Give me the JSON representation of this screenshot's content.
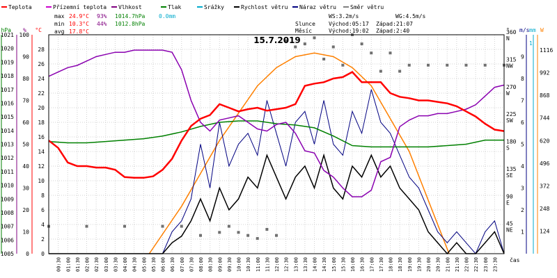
{
  "chart_data": {
    "type": "line",
    "title": "15.7.2019",
    "xlabel": "čas",
    "x_ticks": [
      "00:30",
      "01:00",
      "01:30",
      "02:00",
      "02:30",
      "03:00",
      "03:30",
      "04:00",
      "04:30",
      "05:00",
      "05:30",
      "06:00",
      "06:30",
      "07:00",
      "07:30",
      "08:00",
      "08:30",
      "09:00",
      "09:30",
      "10:00",
      "10:30",
      "11:00",
      "11:30",
      "12:00",
      "12:30",
      "13:00",
      "13:30",
      "14:00",
      "14:30",
      "15:00",
      "15:30",
      "16:00",
      "16:30",
      "17:00",
      "17:30",
      "18:00",
      "18:30",
      "19:00",
      "19:30",
      "20:00",
      "20:30",
      "21:00",
      "21:30",
      "22:00",
      "22:30",
      "23:00",
      "23:30"
    ],
    "axes": {
      "hpa": {
        "label": "hPa",
        "color": "#008000",
        "ticks": [
          "1005",
          "1006",
          "1007",
          "1008",
          "1009",
          "1010",
          "1011",
          "1012",
          "1013",
          "1014",
          "1015",
          "1016",
          "1017",
          "1018",
          "1019",
          "1020",
          "1021"
        ],
        "range": [
          1005,
          1021
        ]
      },
      "pct": {
        "label": "%",
        "color": "#800080",
        "ticks": [
          "0",
          "10",
          "20",
          "30",
          "40",
          "50",
          "60",
          "70",
          "80",
          "90",
          "100"
        ],
        "range": [
          0,
          100
        ]
      },
      "temp": {
        "label": "°C",
        "color": "#ff0000",
        "ticks": [
          "0",
          "2",
          "4",
          "6",
          "8",
          "10",
          "12",
          "14",
          "16",
          "18",
          "20",
          "22",
          "24",
          "26",
          "28"
        ],
        "range": [
          0,
          30
        ]
      },
      "dir": {
        "label": "°",
        "ticks": [
          "45 NE",
          "90 E",
          "135 SE",
          "180 S",
          "225 SW",
          "270 W",
          "315 NW",
          "360 N"
        ],
        "range": [
          0,
          360
        ]
      },
      "wind": {
        "label": "m/s",
        "color": "#000080",
        "ticks": [
          "1",
          "2",
          "3",
          "4",
          "5",
          "6",
          "7",
          "8",
          "9"
        ],
        "range": [
          0,
          10
        ]
      },
      "rain": {
        "label": "mm",
        "color": "#00aacc",
        "ticks": [
          "1"
        ],
        "range": [
          0,
          1
        ]
      },
      "solar": {
        "label": "W",
        "color": "#ff8000",
        "ticks": [
          "124",
          "248",
          "372",
          "496",
          "620",
          "744",
          "868",
          "992",
          "1116"
        ],
        "range": [
          0,
          1200
        ]
      }
    },
    "legend": [
      {
        "name": "Teplota",
        "color": "#ff0000"
      },
      {
        "name": "Přízemní teplota",
        "color": "#cc00cc"
      },
      {
        "name": "Vlhkost",
        "color": "#800080"
      },
      {
        "name": "Tlak",
        "color": "#008000"
      },
      {
        "name": "Srážky",
        "color": "#00aacc"
      },
      {
        "name": "Rychlost větru",
        "color": "#000000"
      },
      {
        "name": "Náraz větru",
        "color": "#000080"
      },
      {
        "name": "Směr větru",
        "color": "#808080"
      }
    ],
    "stats": {
      "max": {
        "label": "max",
        "temp": "24.9°C",
        "hum": "93%",
        "press": "1014.7hPa",
        "rain": "0.0mm"
      },
      "min": {
        "label": "min",
        "temp": "10.3°C",
        "hum": "44%",
        "press": "1012.8hPa"
      },
      "avg": {
        "label": "avg",
        "temp": "17.8°C"
      },
      "ws": "WS:3.2m/s",
      "wg": "WG:4.5m/s",
      "sun": {
        "label": "Slunce",
        "rise": "Východ:05:17",
        "set": "Západ:21:07"
      },
      "moon": {
        "label": "Měsíc",
        "rise": "Východ:19:02",
        "set": "Západ:2:40"
      }
    },
    "series": {
      "temperature": {
        "hours": [
          0,
          0.5,
          1,
          1.5,
          2,
          2.5,
          3,
          3.5,
          4,
          4.5,
          5,
          5.5,
          6,
          6.5,
          7,
          7.5,
          8,
          8.5,
          9,
          9.5,
          10,
          10.5,
          11,
          11.5,
          12,
          12.5,
          13,
          13.5,
          14,
          14.5,
          15,
          15.5,
          16,
          16.5,
          17,
          17.5,
          18,
          18.5,
          19,
          19.5,
          20,
          20.5,
          21,
          21.5,
          22,
          22.5,
          23,
          23.5,
          24
        ],
        "values": [
          15.5,
          14.5,
          12.5,
          12,
          12,
          11.8,
          11.8,
          11.5,
          10.5,
          10.4,
          10.4,
          10.6,
          11.5,
          13,
          15.5,
          17.5,
          18.5,
          19,
          20.5,
          20,
          19.5,
          19.8,
          20,
          19.6,
          19.8,
          20,
          20.5,
          23,
          23.3,
          23.5,
          24,
          24.2,
          24.9,
          23.5,
          23.5,
          23.5,
          22,
          21.5,
          21.3,
          21,
          21,
          20.8,
          20.6,
          20.2,
          19.5,
          18.8,
          17.8,
          17,
          16.8
        ]
      },
      "humidity": {
        "hours": [
          0,
          0.5,
          1,
          1.5,
          2,
          2.5,
          3,
          3.5,
          4,
          4.5,
          5,
          5.5,
          6,
          6.5,
          7,
          7.5,
          8,
          8.5,
          9,
          9.5,
          10,
          10.5,
          11,
          11.5,
          12,
          12.5,
          13,
          13.5,
          14,
          14.5,
          15,
          15.5,
          16,
          16.5,
          17,
          17.5,
          18,
          18.5,
          19,
          19.5,
          20,
          20.5,
          21,
          21.5,
          22,
          22.5,
          23,
          23.5,
          24
        ],
        "values": [
          81,
          83,
          85,
          86,
          88,
          90,
          91,
          92,
          92,
          93,
          93,
          93,
          93,
          92,
          84,
          70,
          60,
          56,
          61,
          62,
          63,
          60,
          57,
          56,
          59,
          60,
          55,
          47,
          46,
          38,
          35,
          30,
          26,
          26,
          29,
          42,
          44,
          58,
          61,
          63,
          63,
          64,
          64,
          65,
          66,
          68,
          72,
          76,
          77
        ]
      },
      "pressure": {
        "hours": [
          0,
          1,
          2,
          3,
          4,
          5,
          6,
          7,
          8,
          9,
          10,
          11,
          12,
          13,
          14,
          15,
          16,
          17,
          18,
          19,
          20,
          21,
          22,
          23,
          24
        ],
        "values": [
          1013.2,
          1013.1,
          1013.1,
          1013.2,
          1013.3,
          1013.4,
          1013.6,
          1013.9,
          1014.3,
          1014.6,
          1014.7,
          1014.7,
          1014.5,
          1014.4,
          1014.2,
          1013.6,
          1012.9,
          1012.8,
          1012.8,
          1012.8,
          1012.8,
          1012.9,
          1013.0,
          1013.3,
          1013.3
        ]
      },
      "solar_radiation": {
        "hours": [
          5.3,
          7,
          9,
          11,
          12,
          13,
          14,
          15,
          16,
          17,
          19,
          21.1
        ],
        "values": [
          0,
          260,
          620,
          920,
          1020,
          1080,
          1100,
          1080,
          1020,
          920,
          560,
          0
        ]
      },
      "wind_speed": {
        "hours": [
          0,
          1,
          2,
          3,
          4,
          5,
          6,
          6.5,
          7,
          7.5,
          8,
          8.5,
          9,
          9.5,
          10,
          10.5,
          11,
          11.5,
          12,
          12.5,
          13,
          13.5,
          14,
          14.5,
          15,
          15.5,
          16,
          16.5,
          17,
          17.5,
          18,
          18.5,
          19,
          19.5,
          20,
          20.5,
          21,
          21.5,
          22,
          22.5,
          23,
          23.5,
          24
        ],
        "values": [
          0,
          0,
          0,
          0,
          0,
          0,
          0,
          0.5,
          0.8,
          1.5,
          2.5,
          1.5,
          3,
          2,
          2.5,
          3.5,
          3,
          4.5,
          3.5,
          2.5,
          3.5,
          4,
          3,
          4.5,
          3,
          2.5,
          4,
          3.5,
          4.5,
          3.5,
          4,
          3,
          2.5,
          2,
          1,
          0.5,
          0,
          0.5,
          0,
          0,
          0.5,
          1,
          0
        ]
      },
      "wind_gust": {
        "hours": [
          0,
          1,
          2,
          3,
          4,
          5,
          6,
          6.5,
          7,
          7.5,
          8,
          8.5,
          9,
          9.5,
          10,
          10.5,
          11,
          11.5,
          12,
          12.5,
          13,
          13.5,
          14,
          14.5,
          15,
          15.5,
          16,
          16.5,
          17,
          17.5,
          18,
          18.5,
          19,
          19.5,
          20,
          20.5,
          21,
          21.5,
          22,
          22.5,
          23,
          23.5,
          24
        ],
        "values": [
          0,
          0,
          0,
          0,
          0,
          0,
          0,
          1,
          1.5,
          2.5,
          5,
          3,
          6,
          4,
          5,
          5.5,
          4.5,
          7,
          5.5,
          4,
          6,
          6.5,
          5,
          7,
          5,
          4.5,
          6.5,
          5.5,
          7.5,
          6,
          5.5,
          4.5,
          3.5,
          3,
          2,
          1,
          0.5,
          1,
          0.5,
          0,
          1,
          1.5,
          0
        ]
      },
      "wind_direction": {
        "hours": [
          0,
          2,
          4,
          6,
          7,
          8,
          9,
          9.5,
          10,
          10.5,
          11,
          11.5,
          12,
          12.5,
          13,
          13.5,
          14,
          14.5,
          15,
          15.5,
          16,
          16.5,
          17,
          17.5,
          18,
          18.5,
          19,
          20,
          21,
          22,
          23,
          24
        ],
        "values": [
          45,
          45,
          45,
          45,
          45,
          30,
          35,
          45,
          35,
          30,
          25,
          40,
          30,
          350,
          340,
          345,
          355,
          320,
          340,
          310,
          360,
          345,
          330,
          300,
          330,
          300,
          310,
          310,
          310,
          310,
          310,
          310
        ]
      }
    }
  }
}
